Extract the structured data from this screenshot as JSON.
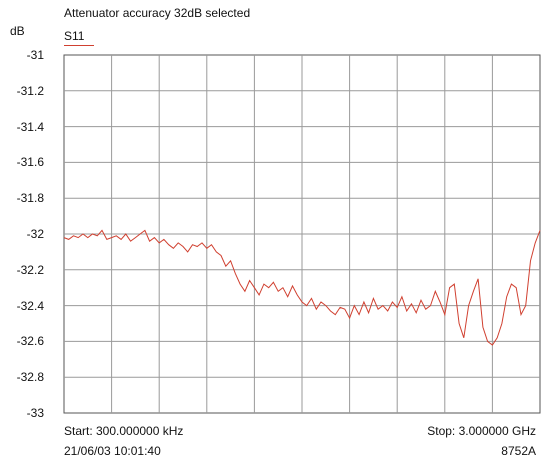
{
  "chart_data": {
    "type": "line",
    "title": "Attenuator accuracy 32dB selected",
    "ylabel": "dB",
    "xlabel": "",
    "ylim": [
      -33,
      -31
    ],
    "xlim": [
      0.0003,
      3.0
    ],
    "x_unit": "GHz",
    "yticks": [
      "-31",
      "-31.2",
      "-31.4",
      "-31.6",
      "-31.8",
      "-32",
      "-32.2",
      "-32.4",
      "-32.6",
      "-32.8",
      "-33"
    ],
    "grid": true,
    "x_divisions": 10,
    "legend_position": "top-left",
    "series": [
      {
        "name": "S11",
        "color": "#d04030",
        "x": [
          0.0003,
          0.03,
          0.06,
          0.09,
          0.12,
          0.15,
          0.18,
          0.21,
          0.24,
          0.27,
          0.3,
          0.33,
          0.36,
          0.39,
          0.42,
          0.45,
          0.48,
          0.51,
          0.54,
          0.57,
          0.6,
          0.63,
          0.66,
          0.69,
          0.72,
          0.75,
          0.78,
          0.81,
          0.84,
          0.87,
          0.9,
          0.93,
          0.96,
          0.99,
          1.02,
          1.05,
          1.08,
          1.11,
          1.14,
          1.17,
          1.2,
          1.23,
          1.26,
          1.29,
          1.32,
          1.35,
          1.38,
          1.41,
          1.44,
          1.47,
          1.5,
          1.53,
          1.56,
          1.59,
          1.62,
          1.65,
          1.68,
          1.71,
          1.74,
          1.77,
          1.8,
          1.83,
          1.86,
          1.89,
          1.92,
          1.95,
          1.98,
          2.01,
          2.04,
          2.07,
          2.1,
          2.13,
          2.16,
          2.19,
          2.22,
          2.25,
          2.28,
          2.31,
          2.34,
          2.37,
          2.4,
          2.43,
          2.46,
          2.49,
          2.52,
          2.55,
          2.58,
          2.61,
          2.64,
          2.67,
          2.7,
          2.73,
          2.76,
          2.79,
          2.82,
          2.85,
          2.88,
          2.91,
          2.94,
          2.97,
          3.0
        ],
        "values": [
          -32.02,
          -32.03,
          -32.01,
          -32.02,
          -32.0,
          -32.02,
          -32.0,
          -32.01,
          -31.98,
          -32.03,
          -32.02,
          -32.01,
          -32.03,
          -32.0,
          -32.04,
          -32.02,
          -32.0,
          -31.98,
          -32.04,
          -32.02,
          -32.05,
          -32.03,
          -32.06,
          -32.08,
          -32.05,
          -32.07,
          -32.1,
          -32.06,
          -32.07,
          -32.05,
          -32.08,
          -32.06,
          -32.1,
          -32.12,
          -32.18,
          -32.15,
          -32.22,
          -32.28,
          -32.32,
          -32.26,
          -32.3,
          -32.34,
          -32.28,
          -32.3,
          -32.27,
          -32.32,
          -32.3,
          -32.35,
          -32.29,
          -32.34,
          -32.38,
          -32.4,
          -32.36,
          -32.42,
          -32.38,
          -32.4,
          -32.43,
          -32.45,
          -32.41,
          -32.42,
          -32.47,
          -32.4,
          -32.45,
          -32.38,
          -32.44,
          -32.36,
          -32.42,
          -32.4,
          -32.43,
          -32.38,
          -32.41,
          -32.35,
          -32.43,
          -32.39,
          -32.44,
          -32.37,
          -32.42,
          -32.4,
          -32.32,
          -32.38,
          -32.45,
          -32.3,
          -32.28,
          -32.5,
          -32.58,
          -32.4,
          -32.32,
          -32.25,
          -32.52,
          -32.6,
          -32.62,
          -32.58,
          -32.5,
          -32.35,
          -32.28,
          -32.3,
          -32.45,
          -32.4,
          -32.15,
          -32.05,
          -31.98
        ]
      }
    ],
    "start_label": "Start: 300.000000 kHz",
    "stop_label": "Stop: 3.000000 GHz",
    "timestamp": "21/06/03 10:01:40",
    "instrument": "8752A"
  }
}
